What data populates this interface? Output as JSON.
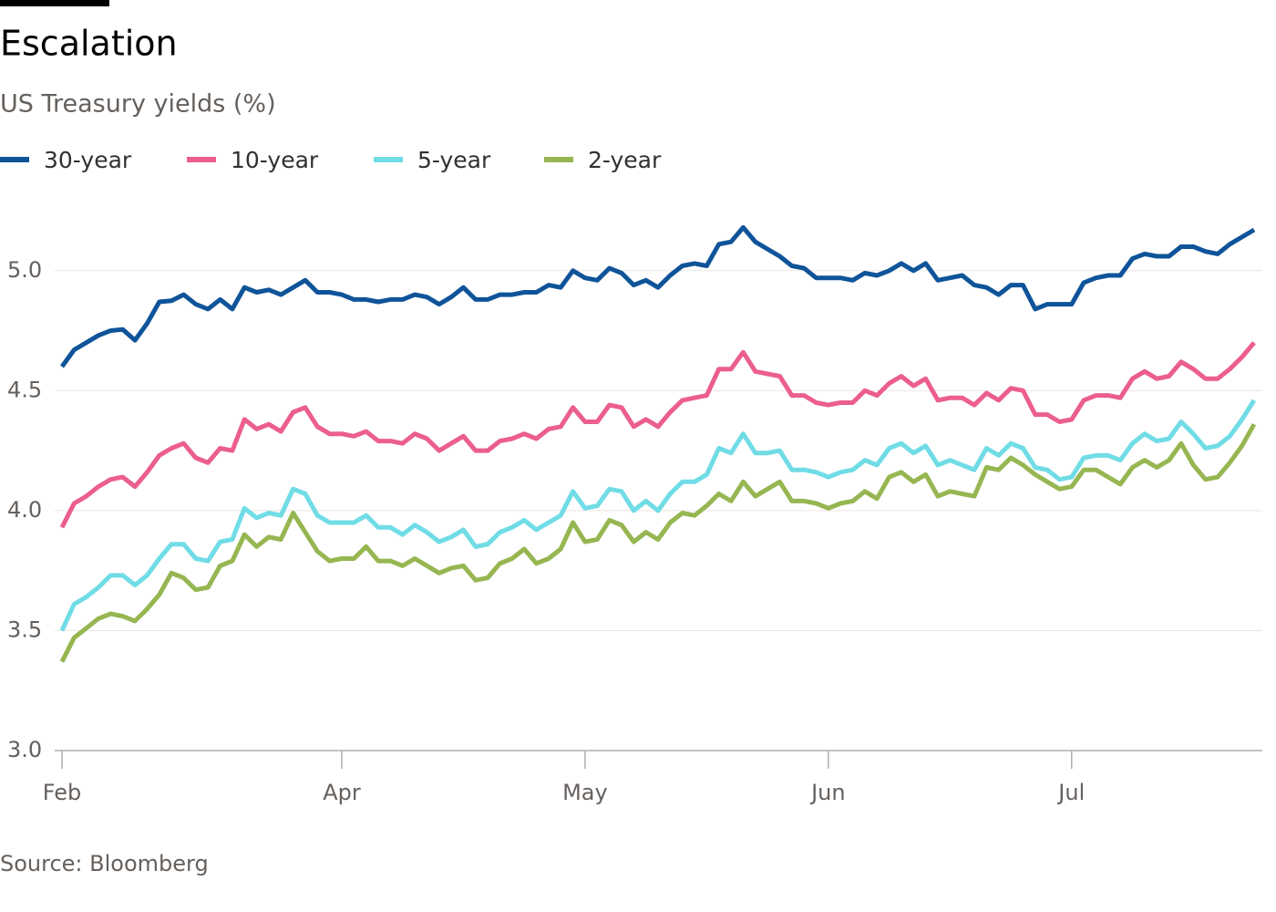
{
  "chart_data": {
    "type": "line",
    "title": "Escalation",
    "subtitle": "US Treasury yields (%)",
    "source": "Source: Bloomberg",
    "categories": [
      "Feb",
      null,
      null,
      null,
      null,
      null,
      null,
      null,
      null,
      null,
      null,
      null,
      null,
      null,
      null,
      null,
      null,
      null,
      null,
      null,
      null,
      null,
      null,
      "Apr",
      null,
      null,
      null,
      null,
      null,
      null,
      null,
      null,
      null,
      null,
      null,
      null,
      null,
      null,
      null,
      null,
      null,
      null,
      null,
      "May",
      null,
      null,
      null,
      null,
      null,
      null,
      null,
      null,
      null,
      null,
      null,
      null,
      null,
      null,
      null,
      null,
      null,
      null,
      null,
      "Jun",
      null,
      null,
      null,
      null,
      null,
      null,
      null,
      null,
      null,
      null,
      null,
      null,
      null,
      null,
      null,
      null,
      null,
      null,
      null,
      "Jul",
      null,
      null,
      null,
      null,
      null,
      null,
      null,
      null,
      null,
      null,
      null,
      null,
      null,
      null,
      null
    ],
    "series": [
      {
        "name": "30-year",
        "color": "#0f5499",
        "values": [
          4.6,
          4.67,
          4.7,
          4.73,
          4.75,
          4.755,
          4.71,
          4.78,
          4.87,
          4.875,
          4.9,
          4.86,
          4.84,
          4.88,
          4.84,
          4.93,
          4.91,
          4.92,
          4.9,
          4.93,
          4.96,
          4.91,
          4.91,
          4.9,
          4.88,
          4.88,
          4.87,
          4.88,
          4.88,
          4.9,
          4.89,
          4.86,
          4.89,
          4.93,
          4.88,
          4.88,
          4.9,
          4.9,
          4.91,
          4.91,
          4.94,
          4.93,
          5.0,
          4.97,
          4.96,
          5.01,
          4.99,
          4.94,
          4.96,
          4.93,
          4.98,
          5.02,
          5.03,
          5.02,
          5.11,
          5.12,
          5.18,
          5.12,
          5.09,
          5.06,
          5.02,
          5.01,
          4.97,
          4.97,
          4.97,
          4.96,
          4.99,
          4.98,
          5.0,
          5.03,
          5.0,
          5.03,
          4.96,
          4.97,
          4.98,
          4.94,
          4.93,
          4.9,
          4.94,
          4.94,
          4.84,
          4.86,
          4.86,
          4.86,
          4.95,
          4.97,
          4.98,
          4.98,
          5.05,
          5.07,
          5.06,
          5.06,
          5.1,
          5.1,
          5.08,
          5.07,
          5.11,
          5.14,
          5.17
        ]
      },
      {
        "name": "10-year",
        "color": "#eb5e8d",
        "values": [
          3.93,
          4.03,
          4.06,
          4.1,
          4.13,
          4.14,
          4.1,
          4.16,
          4.23,
          4.26,
          4.28,
          4.22,
          4.2,
          4.26,
          4.25,
          4.38,
          4.34,
          4.36,
          4.33,
          4.41,
          4.43,
          4.35,
          4.32,
          4.32,
          4.31,
          4.33,
          4.29,
          4.29,
          4.28,
          4.32,
          4.3,
          4.25,
          4.28,
          4.31,
          4.25,
          4.25,
          4.29,
          4.3,
          4.32,
          4.3,
          4.34,
          4.35,
          4.43,
          4.37,
          4.37,
          4.44,
          4.43,
          4.35,
          4.38,
          4.35,
          4.41,
          4.46,
          4.47,
          4.48,
          4.59,
          4.59,
          4.66,
          4.58,
          4.57,
          4.56,
          4.48,
          4.48,
          4.45,
          4.44,
          4.45,
          4.45,
          4.5,
          4.48,
          4.53,
          4.56,
          4.52,
          4.55,
          4.46,
          4.47,
          4.47,
          4.44,
          4.49,
          4.46,
          4.51,
          4.5,
          4.4,
          4.4,
          4.37,
          4.38,
          4.46,
          4.48,
          4.48,
          4.47,
          4.55,
          4.58,
          4.55,
          4.56,
          4.62,
          4.59,
          4.55,
          4.55,
          4.59,
          4.64,
          4.7
        ]
      },
      {
        "name": "5-year",
        "color": "#70dce6",
        "values": [
          3.5,
          3.61,
          3.64,
          3.68,
          3.73,
          3.73,
          3.69,
          3.73,
          3.8,
          3.86,
          3.86,
          3.8,
          3.79,
          3.87,
          3.88,
          4.01,
          3.97,
          3.99,
          3.98,
          4.09,
          4.07,
          3.98,
          3.95,
          3.95,
          3.95,
          3.98,
          3.93,
          3.93,
          3.9,
          3.94,
          3.91,
          3.87,
          3.89,
          3.92,
          3.85,
          3.86,
          3.91,
          3.93,
          3.96,
          3.92,
          3.95,
          3.98,
          4.08,
          4.01,
          4.02,
          4.09,
          4.08,
          4.0,
          4.04,
          4.0,
          4.07,
          4.12,
          4.12,
          4.15,
          4.26,
          4.24,
          4.32,
          4.24,
          4.24,
          4.25,
          4.17,
          4.17,
          4.16,
          4.14,
          4.16,
          4.17,
          4.21,
          4.19,
          4.26,
          4.28,
          4.24,
          4.27,
          4.19,
          4.21,
          4.19,
          4.17,
          4.26,
          4.23,
          4.28,
          4.26,
          4.18,
          4.17,
          4.13,
          4.14,
          4.22,
          4.23,
          4.23,
          4.21,
          4.28,
          4.32,
          4.29,
          4.3,
          4.37,
          4.32,
          4.26,
          4.27,
          4.31,
          4.38,
          4.46
        ]
      },
      {
        "name": "2-year",
        "color": "#96b651",
        "values": [
          3.37,
          3.47,
          3.51,
          3.55,
          3.57,
          3.56,
          3.54,
          3.59,
          3.65,
          3.74,
          3.72,
          3.67,
          3.68,
          3.77,
          3.79,
          3.9,
          3.85,
          3.89,
          3.88,
          3.99,
          3.91,
          3.83,
          3.79,
          3.8,
          3.8,
          3.85,
          3.79,
          3.79,
          3.77,
          3.8,
          3.77,
          3.74,
          3.76,
          3.77,
          3.71,
          3.72,
          3.78,
          3.8,
          3.84,
          3.78,
          3.8,
          3.84,
          3.95,
          3.87,
          3.88,
          3.96,
          3.94,
          3.87,
          3.91,
          3.88,
          3.95,
          3.99,
          3.98,
          4.02,
          4.07,
          4.04,
          4.12,
          4.06,
          4.09,
          4.12,
          4.04,
          4.04,
          4.03,
          4.01,
          4.03,
          4.04,
          4.08,
          4.05,
          4.14,
          4.16,
          4.12,
          4.15,
          4.06,
          4.08,
          4.07,
          4.06,
          4.18,
          4.17,
          4.22,
          4.19,
          4.15,
          4.12,
          4.09,
          4.1,
          4.17,
          4.17,
          4.14,
          4.11,
          4.18,
          4.21,
          4.18,
          4.21,
          4.28,
          4.19,
          4.13,
          4.14,
          4.2,
          4.27,
          4.36
        ]
      }
    ],
    "ylim": [
      3,
      5.25
    ],
    "yticks": [
      {
        "value": 3,
        "label": "3.0"
      },
      3.5,
      {
        "value": 4,
        "label": "4.0"
      },
      4.5,
      {
        "value": 5,
        "label": "5.0"
      }
    ],
    "grid": true
  }
}
